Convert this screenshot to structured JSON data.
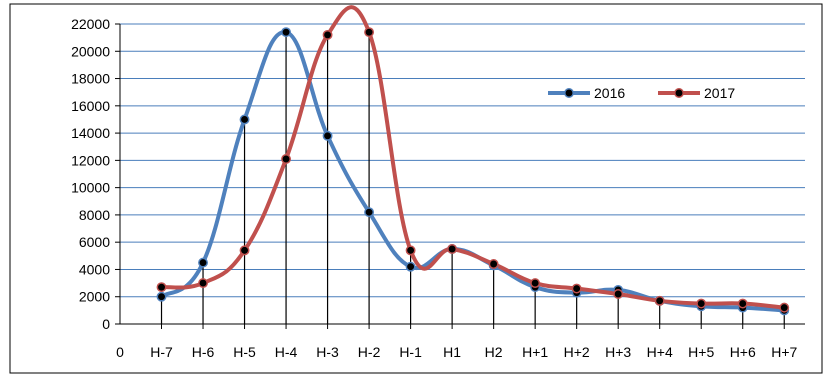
{
  "chart_data": {
    "type": "line",
    "title": "",
    "xlabel": "",
    "ylabel": "",
    "x_origin_label": "0",
    "categories": [
      "H-7",
      "H-6",
      "H-5",
      "H-4",
      "H-3",
      "H-2",
      "H-1",
      "H1",
      "H2",
      "H+1",
      "H+2",
      "H+3",
      "H+4",
      "H+5",
      "H+6",
      "H+7"
    ],
    "ylim": [
      0,
      22000
    ],
    "yticks": [
      0,
      2000,
      4000,
      6000,
      8000,
      10000,
      12000,
      14000,
      16000,
      18000,
      20000,
      22000
    ],
    "grid": true,
    "legend_position": "right",
    "series": [
      {
        "name": "2016",
        "color": "#4f81bd",
        "values": [
          2000,
          4500,
          15000,
          21400,
          13800,
          8200,
          4200,
          5500,
          4300,
          2700,
          2300,
          2500,
          1700,
          1300,
          1200,
          1000
        ]
      },
      {
        "name": "2017",
        "color": "#c0504d",
        "values": [
          2700,
          3000,
          5400,
          12100,
          21200,
          21400,
          5400,
          5500,
          4400,
          3000,
          2600,
          2200,
          1700,
          1500,
          1500,
          1200
        ]
      }
    ]
  }
}
